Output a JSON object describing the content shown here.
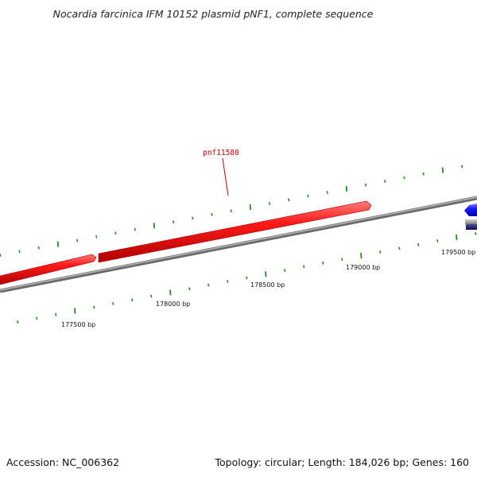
{
  "title": "Nocardia farcinica IFM 10152 plasmid pNF1, complete sequence",
  "footer": {
    "accession": "Accession: NC_006362",
    "summary": "Topology: circular; Length: 184,026 bp; Genes: 160"
  },
  "gene_label": "pnf11580",
  "bp_labels": [
    "177500 bp",
    "178000 bp",
    "178500 bp",
    "179000 bp",
    "179500 bp"
  ],
  "colors": {
    "forward_gene": "#ee1111",
    "reverse_gene": "#1111ee",
    "backbone": "#8a8a8a",
    "tick": "#2a8a2a",
    "gene_label": "#cc0000"
  }
}
